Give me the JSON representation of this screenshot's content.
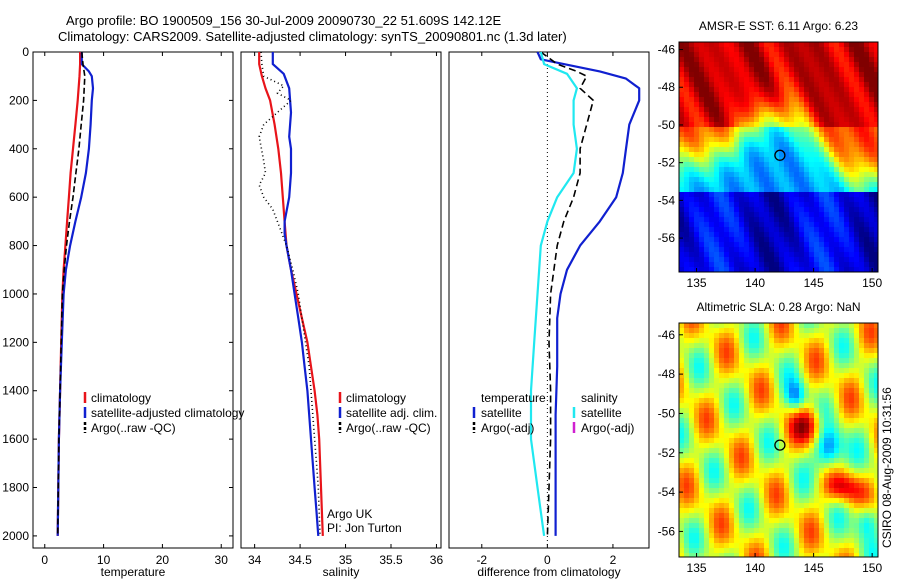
{
  "header": {
    "title_line1": "Argo profile: BO 1900509_156 30-Jul-2009 20090730_22 51.609S 142.12E",
    "title_line2": "Climatology: CARS2009. Satellite-adjusted climatology: synTS_20090801.nc (1.3d later)"
  },
  "colors": {
    "red": "#e8141a",
    "blue": "#1020d0",
    "black": "#000000",
    "cyan": "#20e8f0",
    "magenta": "#d020d0"
  },
  "side_label": "CSIRO 08-Aug-2009 10:31:56",
  "chart_data": [
    {
      "id": "temperature",
      "type": "line",
      "xlabel": "temperature",
      "xlim": [
        -2,
        32
      ],
      "xticks": [
        0,
        10,
        20,
        30
      ],
      "ylim": [
        2050,
        0
      ],
      "yticks": [
        0,
        200,
        400,
        600,
        800,
        1000,
        1200,
        1400,
        1600,
        1800,
        2000
      ],
      "grid": false,
      "legend_entries": [
        "climatology",
        "satellite-adjusted climatology",
        "Argo(..raw -QC)"
      ],
      "series": [
        {
          "name": "climatology",
          "color": "red",
          "dash": "",
          "points": [
            [
              6.0,
              0
            ],
            [
              6.0,
              50
            ],
            [
              5.9,
              100
            ],
            [
              5.6,
              200
            ],
            [
              5.2,
              300
            ],
            [
              4.8,
              400
            ],
            [
              4.4,
              500
            ],
            [
              4.1,
              600
            ],
            [
              3.8,
              700
            ],
            [
              3.5,
              800
            ],
            [
              3.2,
              900
            ],
            [
              3.0,
              1000
            ],
            [
              2.8,
              1200
            ],
            [
              2.6,
              1400
            ],
            [
              2.4,
              1600
            ],
            [
              2.3,
              1800
            ],
            [
              2.2,
              2000
            ]
          ]
        },
        {
          "name": "satellite-adjusted climatology",
          "color": "blue",
          "dash": "",
          "points": [
            [
              6.3,
              0
            ],
            [
              6.3,
              50
            ],
            [
              7.5,
              80
            ],
            [
              8.0,
              100
            ],
            [
              8.2,
              150
            ],
            [
              8.0,
              200
            ],
            [
              7.8,
              300
            ],
            [
              7.5,
              400
            ],
            [
              7.0,
              500
            ],
            [
              6.2,
              600
            ],
            [
              5.2,
              700
            ],
            [
              4.3,
              800
            ],
            [
              3.6,
              900
            ],
            [
              3.2,
              1000
            ],
            [
              2.9,
              1200
            ],
            [
              2.6,
              1400
            ],
            [
              2.4,
              1600
            ],
            [
              2.3,
              1800
            ],
            [
              2.2,
              2000
            ]
          ]
        },
        {
          "name": "Argo(..raw -QC)",
          "color": "black",
          "dash": "6,3",
          "points": [
            [
              6.3,
              0
            ],
            [
              6.5,
              50
            ],
            [
              6.8,
              100
            ],
            [
              6.6,
              200
            ],
            [
              6.2,
              300
            ],
            [
              5.8,
              400
            ],
            [
              5.3,
              500
            ],
            [
              4.8,
              600
            ],
            [
              4.2,
              700
            ],
            [
              3.7,
              800
            ],
            [
              3.3,
              900
            ],
            [
              3.0,
              1000
            ],
            [
              2.8,
              1200
            ],
            [
              2.6,
              1400
            ],
            [
              2.4,
              1600
            ],
            [
              2.3,
              1800
            ],
            [
              2.2,
              2000
            ]
          ]
        }
      ]
    },
    {
      "id": "salinity",
      "type": "line",
      "xlabel": "salinity",
      "xlim": [
        33.85,
        36.05
      ],
      "xticks": [
        34,
        34.5,
        35,
        35.5,
        36
      ],
      "ylim": [
        2050,
        0
      ],
      "yticks": [],
      "grid": false,
      "legend_entries": [
        "climatology",
        "satellite adj. clim.",
        "Argo(..raw -QC)"
      ],
      "annotations": [
        "Argo UK",
        "PI: Jon Turton"
      ],
      "series": [
        {
          "name": "climatology",
          "color": "red",
          "dash": "",
          "points": [
            [
              34.05,
              0
            ],
            [
              34.05,
              50
            ],
            [
              34.08,
              100
            ],
            [
              34.12,
              150
            ],
            [
              34.17,
              200
            ],
            [
              34.22,
              300
            ],
            [
              34.26,
              400
            ],
            [
              34.29,
              500
            ],
            [
              34.31,
              600
            ],
            [
              34.33,
              700
            ],
            [
              34.35,
              800
            ],
            [
              34.4,
              900
            ],
            [
              34.46,
              1000
            ],
            [
              34.52,
              1100
            ],
            [
              34.58,
              1200
            ],
            [
              34.62,
              1300
            ],
            [
              34.66,
              1400
            ],
            [
              34.69,
              1500
            ],
            [
              34.71,
              1600
            ],
            [
              34.72,
              1700
            ],
            [
              34.73,
              1800
            ],
            [
              34.74,
              1900
            ],
            [
              34.75,
              2000
            ]
          ]
        },
        {
          "name": "satellite adj. clim.",
          "color": "blue",
          "dash": "",
          "points": [
            [
              34.2,
              0
            ],
            [
              34.2,
              50
            ],
            [
              34.32,
              90
            ],
            [
              34.38,
              150
            ],
            [
              34.4,
              250
            ],
            [
              34.38,
              350
            ],
            [
              34.4,
              400
            ],
            [
              34.4,
              500
            ],
            [
              34.38,
              600
            ],
            [
              34.33,
              700
            ],
            [
              34.33,
              750
            ],
            [
              34.35,
              800
            ],
            [
              34.4,
              900
            ],
            [
              34.44,
              1000
            ],
            [
              34.48,
              1100
            ],
            [
              34.52,
              1200
            ],
            [
              34.55,
              1300
            ],
            [
              34.58,
              1400
            ],
            [
              34.6,
              1500
            ],
            [
              34.62,
              1600
            ],
            [
              34.64,
              1700
            ],
            [
              34.66,
              1800
            ],
            [
              34.68,
              1900
            ],
            [
              34.7,
              2000
            ]
          ]
        },
        {
          "name": "Argo(..raw -QC)",
          "color": "black",
          "dash": "1,3",
          "points": [
            [
              34.07,
              0
            ],
            [
              34.08,
              50
            ],
            [
              34.1,
              100
            ],
            [
              34.32,
              140
            ],
            [
              34.25,
              170
            ],
            [
              34.4,
              200
            ],
            [
              34.1,
              300
            ],
            [
              34.05,
              350
            ],
            [
              34.1,
              450
            ],
            [
              34.12,
              500
            ],
            [
              34.05,
              550
            ],
            [
              34.1,
              600
            ],
            [
              34.2,
              650
            ],
            [
              34.35,
              800
            ],
            [
              34.42,
              900
            ],
            [
              34.48,
              1000
            ],
            [
              34.52,
              1100
            ],
            [
              34.56,
              1200
            ],
            [
              34.6,
              1300
            ],
            [
              34.62,
              1400
            ],
            [
              34.64,
              1500
            ],
            [
              34.66,
              1600
            ],
            [
              34.68,
              1700
            ],
            [
              34.7,
              1800
            ],
            [
              34.71,
              1900
            ],
            [
              34.72,
              2000
            ]
          ]
        }
      ]
    },
    {
      "id": "difference",
      "type": "line",
      "xlabel": "difference from climatology",
      "xlim": [
        -3,
        3.1
      ],
      "xticks": [
        -2,
        0,
        2
      ],
      "ylim": [
        2050,
        0
      ],
      "yticks": [],
      "grid": false,
      "zero_line": true,
      "legend_headers": [
        "temperature",
        "salinity"
      ],
      "legend_entries": [
        "satellite",
        "Argo(-adj)",
        "satellite",
        "Argo(-adj)"
      ],
      "series": [
        {
          "name": "temperature satellite",
          "color": "blue",
          "dash": "",
          "points": [
            [
              -0.3,
              0
            ],
            [
              -0.2,
              30
            ],
            [
              0.5,
              50
            ],
            [
              1.6,
              80
            ],
            [
              2.4,
              110
            ],
            [
              2.8,
              150
            ],
            [
              2.8,
              200
            ],
            [
              2.5,
              300
            ],
            [
              2.4,
              400
            ],
            [
              2.3,
              500
            ],
            [
              2.1,
              600
            ],
            [
              1.6,
              700
            ],
            [
              1.0,
              800
            ],
            [
              0.6,
              900
            ],
            [
              0.4,
              1000
            ],
            [
              0.3,
              1100
            ],
            [
              0.3,
              1300
            ],
            [
              0.25,
              1500
            ],
            [
              0.25,
              1700
            ],
            [
              0.25,
              1900
            ],
            [
              0.25,
              2000
            ]
          ]
        },
        {
          "name": "temperature Argo(-adj)",
          "color": "black",
          "dash": "7,4",
          "points": [
            [
              -0.2,
              0
            ],
            [
              0.3,
              50
            ],
            [
              0.9,
              80
            ],
            [
              1.2,
              100
            ],
            [
              1.0,
              150
            ],
            [
              1.4,
              200
            ],
            [
              1.2,
              300
            ],
            [
              1.0,
              400
            ],
            [
              1.0,
              500
            ],
            [
              0.8,
              600
            ],
            [
              0.5,
              700
            ],
            [
              0.3,
              800
            ],
            [
              0.2,
              900
            ],
            [
              0.1,
              1000
            ],
            [
              0.05,
              1200
            ],
            [
              0.1,
              1400
            ],
            [
              0.1,
              1600
            ],
            [
              0.05,
              1800
            ],
            [
              0.0,
              2000
            ]
          ]
        },
        {
          "name": "salinity satellite",
          "color": "cyan",
          "dash": "",
          "points": [
            [
              -0.2,
              0
            ],
            [
              -0.1,
              50
            ],
            [
              0.6,
              90
            ],
            [
              0.9,
              150
            ],
            [
              0.8,
              200
            ],
            [
              0.8,
              300
            ],
            [
              0.9,
              400
            ],
            [
              0.8,
              500
            ],
            [
              0.3,
              600
            ],
            [
              0.0,
              700
            ],
            [
              -0.2,
              800
            ],
            [
              -0.3,
              1000
            ],
            [
              -0.4,
              1200
            ],
            [
              -0.5,
              1400
            ],
            [
              -0.5,
              1600
            ],
            [
              -0.3,
              1800
            ],
            [
              -0.1,
              2000
            ]
          ]
        }
      ]
    },
    {
      "id": "sst-map",
      "type": "heatmap",
      "title": "AMSR-E SST: 6.11 Argo: 6.23",
      "xlim": [
        133.5,
        150.5
      ],
      "ylim": [
        -57.8,
        -45.6
      ],
      "xticks": [
        135,
        140,
        145,
        150
      ],
      "yticks": [
        -46,
        -48,
        -50,
        -52,
        -54,
        -56
      ],
      "marker": [
        142.12,
        -51.609
      ]
    },
    {
      "id": "sla-map",
      "type": "heatmap",
      "title": "Altimetric SLA: 0.28 Argo: NaN",
      "xlim": [
        133.5,
        150.5
      ],
      "ylim": [
        -57.3,
        -45.4
      ],
      "xticks": [
        135,
        140,
        145,
        150
      ],
      "yticks": [
        -46,
        -48,
        -50,
        -52,
        -54,
        -56
      ],
      "marker": [
        142.12,
        -51.609
      ]
    }
  ]
}
